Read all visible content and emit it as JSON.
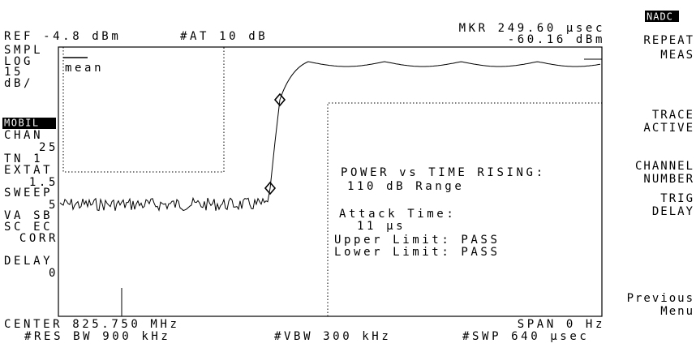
{
  "header": {
    "ref": "REF -4.8 dBm",
    "attenuation": "#AT 10 dB",
    "marker_time": "MKR 249.60 µsec",
    "marker_level": "-60.16 dBm",
    "mode": "NADC"
  },
  "left_panel": [
    "SMPL",
    "LOG",
    "15",
    "dB/",
    "MOBIL",
    "CHAN",
    "25",
    "TN 1",
    "EXTAT",
    "1.5",
    "SWEEP",
    "5",
    "VA SB",
    "SC EC",
    "CORR",
    "DELAY",
    "0"
  ],
  "trace_label": "mean",
  "result_box": {
    "title": "POWER vs TIME RISING:",
    "range": "110 dB Range",
    "attack_label": "Attack Time:",
    "attack_value": "11 µs",
    "upper": "Upper Limit: PASS",
    "lower": "Lower Limit: PASS"
  },
  "softkeys": [
    [
      "REPEAT",
      "MEAS"
    ],
    [
      "TRACE",
      "ACTIVE"
    ],
    [
      "CHANNEL",
      "NUMBER"
    ],
    [
      "TRIG",
      "DELAY"
    ],
    [
      "Previous",
      "Menu"
    ]
  ],
  "footer": {
    "center": "CENTER 825.750 MHz",
    "span": "SPAN 0 Hz",
    "rbw": "#RES BW 900 kHz",
    "vbw": "#VBW 300 kHz",
    "sweep": "#SWP 640 µsec"
  }
}
